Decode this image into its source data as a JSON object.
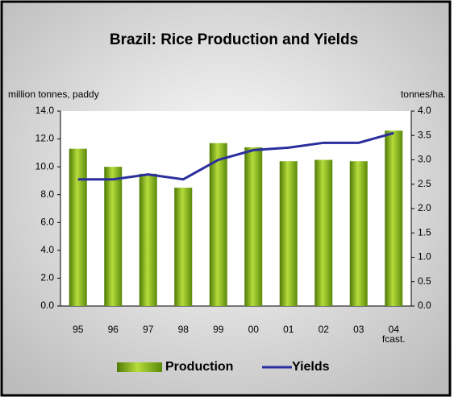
{
  "chart_data": {
    "type": "bar_line",
    "title": "Brazil: Rice Production and Yields",
    "y_label": "million tonnes, paddy",
    "y2_label": "tonnes/ha.",
    "categories": [
      "95",
      "96",
      "97",
      "98",
      "99",
      "00",
      "01",
      "02",
      "03",
      "04 fcast."
    ],
    "series": [
      {
        "name": "Production",
        "color": "#7fae1a",
        "type": "bar",
        "values": [
          11.3,
          10.0,
          9.5,
          8.5,
          11.7,
          11.4,
          10.4,
          10.5,
          10.4,
          12.6
        ]
      },
      {
        "name": "Yields",
        "color": "#2b2f9e",
        "type": "line",
        "axis": "y2",
        "values": [
          2.6,
          2.6,
          2.7,
          2.6,
          3.0,
          3.2,
          3.25,
          3.35,
          3.35,
          3.55
        ]
      }
    ],
    "ylim": [
      0,
      14
    ],
    "yticks": [
      {
        "value": 0,
        "label": "0.0"
      },
      {
        "value": 2,
        "label": "2.0"
      },
      {
        "value": 4,
        "label": "4.0"
      },
      {
        "value": 6,
        "label": "6.0"
      },
      {
        "value": 8,
        "label": "8.0"
      },
      {
        "value": 10,
        "label": "10.0"
      },
      {
        "value": 12,
        "label": "12.0"
      },
      {
        "value": 14,
        "label": "14.0"
      }
    ],
    "y2lim": [
      0,
      4
    ],
    "y2ticks": [
      {
        "value": 0,
        "label": "0.0"
      },
      0.5,
      {
        "value": 1,
        "label": "1.0"
      },
      1.5,
      {
        "value": 2,
        "label": "2.0"
      },
      2.5,
      {
        "value": 3,
        "label": "3.0"
      },
      3.5,
      {
        "value": 4,
        "label": "4.0"
      }
    ]
  }
}
